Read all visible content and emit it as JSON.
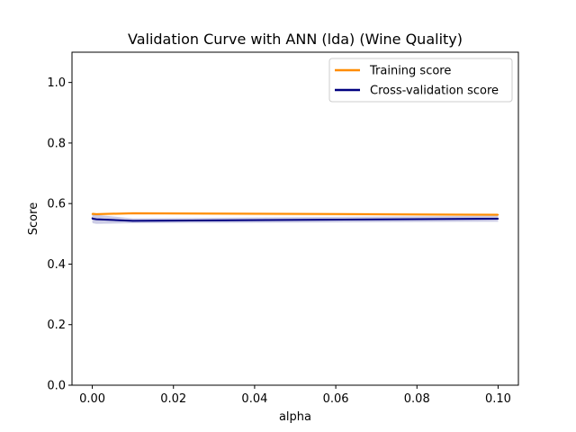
{
  "chart_data": {
    "type": "line",
    "title": "Validation Curve with ANN (lda) (Wine Quality)",
    "xlabel": "alpha",
    "ylabel": "Score",
    "xlim": [
      -0.005,
      0.105
    ],
    "ylim": [
      0.0,
      1.1
    ],
    "xticks": [
      0.0,
      0.02,
      0.04,
      0.06,
      0.08,
      0.1
    ],
    "xtick_labels": [
      "0.00",
      "0.02",
      "0.04",
      "0.06",
      "0.08",
      "0.10"
    ],
    "yticks": [
      0.0,
      0.2,
      0.4,
      0.6,
      0.8,
      1.0
    ],
    "ytick_labels": [
      "0.0",
      "0.2",
      "0.4",
      "0.6",
      "0.8",
      "1.0"
    ],
    "grid": false,
    "legend_position": "top-right",
    "x": [
      0.0,
      0.0001,
      0.001,
      0.01,
      0.1
    ],
    "series": [
      {
        "name": "Training score",
        "color": "#ff8c00",
        "band_color": "#ff8c00",
        "values": [
          0.565,
          0.566,
          0.565,
          0.568,
          0.563
        ],
        "lower": [
          0.558,
          0.56,
          0.56,
          0.563,
          0.558
        ],
        "upper": [
          0.572,
          0.572,
          0.57,
          0.573,
          0.568
        ]
      },
      {
        "name": "Cross-validation score",
        "color": "#000080",
        "band_color": "#000080",
        "values": [
          0.552,
          0.55,
          0.548,
          0.543,
          0.55
        ],
        "lower": [
          0.538,
          0.535,
          0.533,
          0.535,
          0.54
        ],
        "upper": [
          0.566,
          0.565,
          0.563,
          0.551,
          0.56
        ]
      }
    ]
  }
}
